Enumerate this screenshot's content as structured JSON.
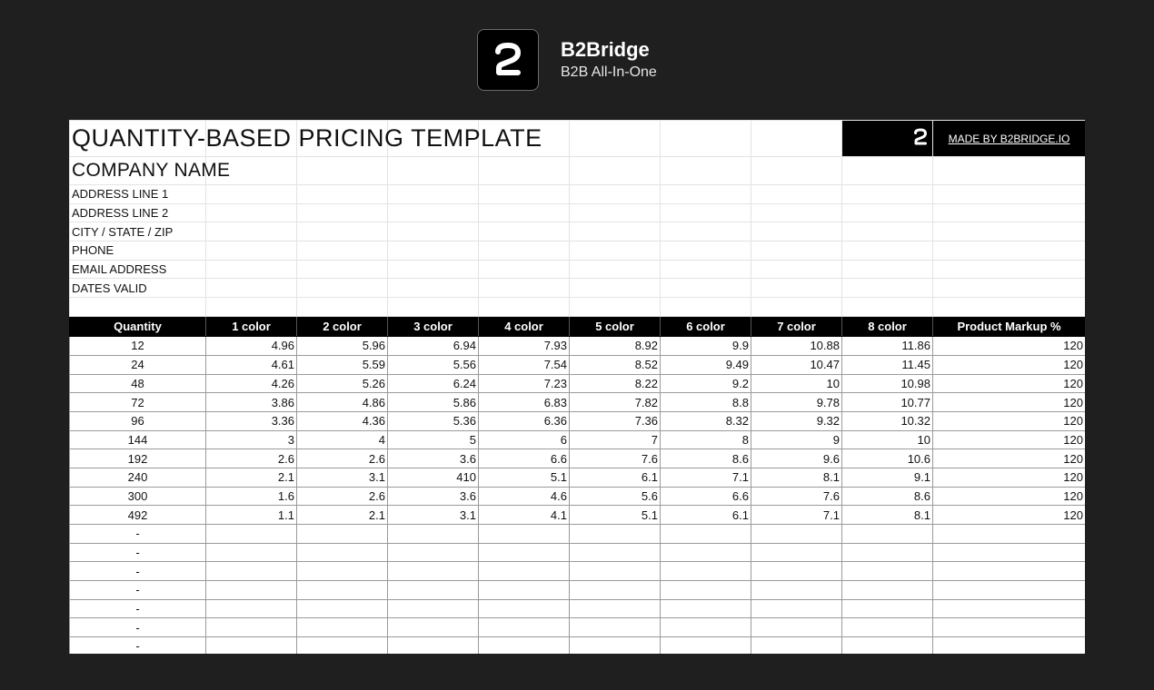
{
  "brand": {
    "name": "B2Bridge",
    "tagline": "B2B All-In-One",
    "logo_icon": "b2bridge-logo-icon"
  },
  "sheet": {
    "title": "QUANTITY-BASED PRICING TEMPLATE",
    "made_by": "MADE BY B2BRIDGE.IO",
    "company_name": "COMPANY NAME",
    "info_rows": [
      "ADDRESS LINE 1",
      "ADDRESS LINE 2",
      "CITY / STATE / ZIP",
      "PHONE",
      "EMAIL ADDRESS",
      "DATES VALID"
    ],
    "headers": [
      "Quantity",
      "1 color",
      "2 color",
      "3 color",
      "4 color",
      "5 color",
      "6 color",
      "7 color",
      "8 color",
      "Product Markup %"
    ],
    "rows": [
      [
        "12",
        "4.96",
        "5.96",
        "6.94",
        "7.93",
        "8.92",
        "9.9",
        "10.88",
        "11.86",
        "120"
      ],
      [
        "24",
        "4.61",
        "5.59",
        "5.56",
        "7.54",
        "8.52",
        "9.49",
        "10.47",
        "11.45",
        "120"
      ],
      [
        "48",
        "4.26",
        "5.26",
        "6.24",
        "7.23",
        "8.22",
        "9.2",
        "10",
        "10.98",
        "120"
      ],
      [
        "72",
        "3.86",
        "4.86",
        "5.86",
        "6.83",
        "7.82",
        "8.8",
        "9.78",
        "10.77",
        "120"
      ],
      [
        "96",
        "3.36",
        "4.36",
        "5.36",
        "6.36",
        "7.36",
        "8.32",
        "9.32",
        "10.32",
        "120"
      ],
      [
        "144",
        "3",
        "4",
        "5",
        "6",
        "7",
        "8",
        "9",
        "10",
        "120"
      ],
      [
        "192",
        "2.6",
        "2.6",
        "3.6",
        "6.6",
        "7.6",
        "8.6",
        "9.6",
        "10.6",
        "120"
      ],
      [
        "240",
        "2.1",
        "3.1",
        "410",
        "5.1",
        "6.1",
        "7.1",
        "8.1",
        "9.1",
        "120"
      ],
      [
        "300",
        "1.6",
        "2.6",
        "3.6",
        "4.6",
        "5.6",
        "6.6",
        "7.6",
        "8.6",
        "120"
      ],
      [
        "492",
        "1.1",
        "2.1",
        "3.1",
        "4.1",
        "5.1",
        "6.1",
        "7.1",
        "8.1",
        "120"
      ]
    ],
    "empty_rows": [
      "-",
      "-",
      "-",
      "-",
      "-",
      "-",
      "-"
    ]
  }
}
